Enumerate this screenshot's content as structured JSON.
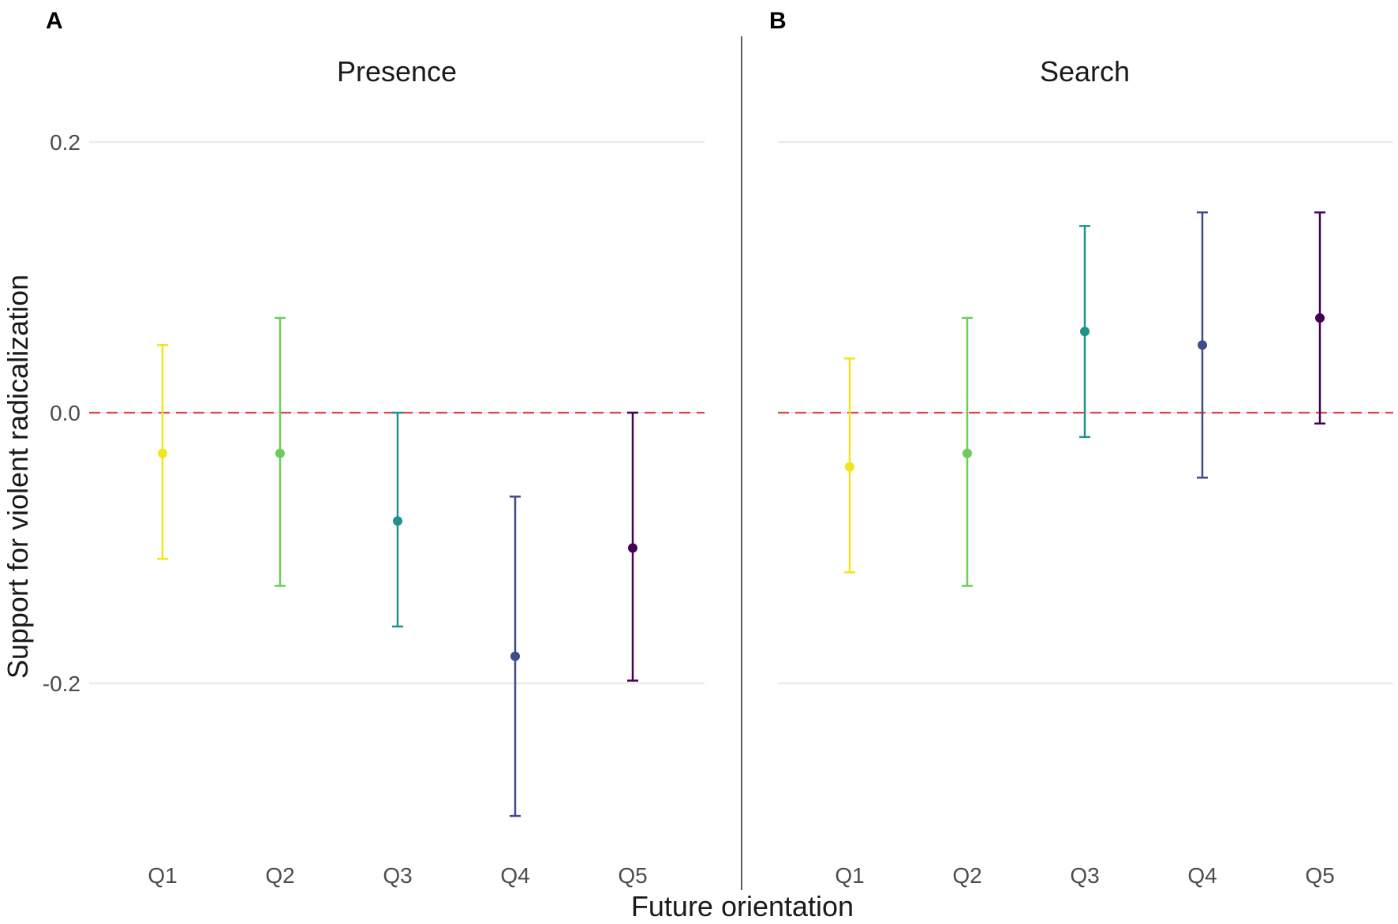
{
  "chart_data": {
    "type": "errorbar",
    "xlabel": "Future orientation",
    "ylabel": "Support for violent radicalization",
    "categories": [
      "Q1",
      "Q2",
      "Q3",
      "Q4",
      "Q5"
    ],
    "colors": [
      "#f2e51d",
      "#6ccd5a",
      "#21918c",
      "#3e4c8a",
      "#440154"
    ],
    "reference_line": {
      "y": 0.0,
      "color": "#e0454a",
      "style": "dashed"
    },
    "yticks": [
      0.2,
      0.0,
      -0.2
    ],
    "ytick_labels": [
      "0.2",
      "0.0",
      "-0.2"
    ],
    "ylim": [
      -0.33,
      0.25
    ],
    "panels": [
      {
        "letter": "A",
        "title": "Presence",
        "estimates": [
          -0.03,
          -0.03,
          -0.08,
          -0.18,
          -0.1
        ],
        "lower": [
          -0.108,
          -0.128,
          -0.158,
          -0.298,
          -0.198
        ],
        "upper": [
          0.05,
          0.07,
          0.0,
          -0.062,
          0.0
        ]
      },
      {
        "letter": "B",
        "title": "Search",
        "estimates": [
          -0.04,
          -0.03,
          0.06,
          0.05,
          0.07
        ],
        "lower": [
          -0.118,
          -0.128,
          -0.018,
          -0.048,
          -0.008
        ],
        "upper": [
          0.04,
          0.07,
          0.138,
          0.148,
          0.148
        ]
      }
    ]
  }
}
